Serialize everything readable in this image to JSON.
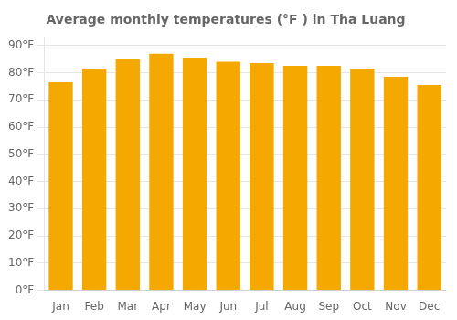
{
  "chart_data": {
    "type": "bar",
    "title": "Average monthly temperatures (°F ) in Tha Luang",
    "categories": [
      "Jan",
      "Feb",
      "Mar",
      "Apr",
      "May",
      "Jun",
      "Jul",
      "Aug",
      "Sep",
      "Oct",
      "Nov",
      "Dec"
    ],
    "values": [
      76.5,
      81.5,
      85.0,
      87.0,
      85.5,
      84.0,
      83.5,
      82.5,
      82.5,
      81.5,
      78.5,
      75.5
    ],
    "color": "#F5A800",
    "ylim": [
      0,
      93
    ],
    "yticks": [
      {
        "value": 0,
        "label": "0°F"
      },
      {
        "value": 10,
        "label": "10°F"
      },
      {
        "value": 20,
        "label": "20°F"
      },
      {
        "value": 30,
        "label": "30°F"
      },
      {
        "value": 40,
        "label": "40°F"
      },
      {
        "value": 50,
        "label": "50°F"
      },
      {
        "value": 60,
        "label": "60°F"
      },
      {
        "value": 70,
        "label": "70°F"
      },
      {
        "value": 80,
        "label": "80°F"
      },
      {
        "value": 90,
        "label": "90°F"
      }
    ],
    "grid": "y"
  }
}
